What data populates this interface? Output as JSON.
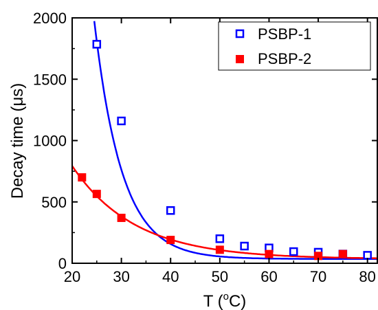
{
  "chart_data": {
    "type": "scatter",
    "xlabel_main": "T (",
    "xlabel_sup": "o",
    "xlabel_unit": "C)",
    "ylabel": "Decay time (μs)",
    "xlim": [
      20,
      82
    ],
    "ylim": [
      0,
      2000
    ],
    "x_ticks": [
      20,
      30,
      40,
      50,
      60,
      70,
      80
    ],
    "y_ticks": [
      0,
      500,
      1000,
      1500,
      2000
    ],
    "grid": false,
    "legend_position": "top-right",
    "series": [
      {
        "name": "PSBP-1",
        "color": "#0000ff",
        "marker": "open-square",
        "x": [
          25,
          30,
          40,
          50,
          55,
          60,
          65,
          70,
          75,
          80
        ],
        "y": [
          1785,
          1160,
          430,
          200,
          140,
          125,
          95,
          90,
          75,
          65
        ],
        "fit": {
          "A": 153000,
          "k": 0.1783,
          "c": 35
        }
      },
      {
        "name": "PSBP-2",
        "color": "#ff0000",
        "marker": "filled-square",
        "x": [
          22,
          25,
          30,
          40,
          50,
          60,
          70,
          75
        ],
        "y": [
          700,
          565,
          370,
          190,
          110,
          75,
          60,
          75
        ],
        "fit": {
          "A": 3620,
          "k": 0.0782,
          "c": 35
        }
      }
    ]
  }
}
